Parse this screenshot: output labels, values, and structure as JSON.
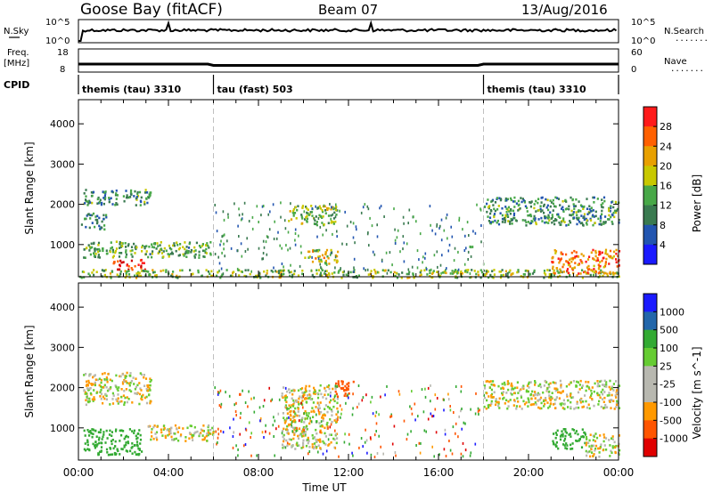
{
  "header": {
    "station": "Goose Bay (fitACF)",
    "beam": "Beam 07",
    "date": "13/Aug/2016"
  },
  "strip_labels": {
    "nsky": "N.Sky",
    "freq_line1": "Freq.",
    "freq_line2": "[MHz]",
    "cpid": "CPID",
    "nsearch": "N.Search",
    "nave": "Nave",
    "nsky_top": "10^5",
    "nsky_bottom": "10^0",
    "nsearch_top": "10^5",
    "nsearch_bottom": "10^0",
    "freq_top": "18",
    "freq_bottom": "8",
    "nave_top": "60",
    "nave_bottom": "0",
    "dots": "......."
  },
  "cpid_segments": [
    {
      "label": "themis (tau) 3310",
      "start_hour": 0
    },
    {
      "label": "tau (fast) 503",
      "start_hour": 6
    },
    {
      "label": "themis (tau) 3310",
      "start_hour": 18
    }
  ],
  "colors": {
    "power": [
      "#1a1aff",
      "#2255b0",
      "#3a7a50",
      "#48a848",
      "#c8c800",
      "#e8a000",
      "#ff6000",
      "#ff1a1a",
      "#d00000"
    ],
    "velocity": [
      "#e00000",
      "#ff5500",
      "#ff9900",
      "#b8b8b0",
      "#b8b8b0",
      "#66cc33",
      "#33aa33",
      "#2266aa",
      "#1a1aff"
    ],
    "dashed": "#c0c0c0"
  },
  "chart_data": [
    {
      "type": "heatmap",
      "name": "power",
      "ylabel": "Slant Range [km]",
      "yticks": [
        "1000",
        "2000",
        "3000",
        "4000"
      ],
      "ylim": [
        200,
        4600
      ],
      "xlim": [
        0,
        24
      ],
      "colorbar": {
        "label": "Power [dB]",
        "ticks": [
          "4",
          "8",
          "12",
          "16",
          "20",
          "24",
          "28"
        ],
        "range": [
          0,
          32
        ]
      },
      "dashed_lines_hours": [
        6,
        18
      ],
      "regions": [
        {
          "hour_start": 0.2,
          "hour_end": 3.2,
          "range_start": 2000,
          "range_end": 2400,
          "power": 10
        },
        {
          "hour_start": 0.1,
          "hour_end": 1.2,
          "range_start": 1400,
          "range_end": 1800,
          "power": 8
        },
        {
          "hour_start": 0.2,
          "hour_end": 6.0,
          "range_start": 700,
          "range_end": 1100,
          "power": 12
        },
        {
          "hour_start": 1.5,
          "hour_end": 3.0,
          "range_start": 400,
          "range_end": 650,
          "power": 28
        },
        {
          "hour_start": 0.0,
          "hour_end": 24.0,
          "range_start": 200,
          "range_end": 400,
          "power": 14
        },
        {
          "hour_start": 9.3,
          "hour_end": 11.5,
          "range_start": 1500,
          "range_end": 2000,
          "power": 14
        },
        {
          "hour_start": 10.0,
          "hour_end": 11.5,
          "range_start": 550,
          "range_end": 900,
          "power": 18
        },
        {
          "hour_start": 18.0,
          "hour_end": 24.0,
          "range_start": 1500,
          "range_end": 2200,
          "power": 10
        },
        {
          "hour_start": 21.0,
          "hour_end": 24.0,
          "range_start": 300,
          "range_end": 900,
          "power": 22
        }
      ]
    },
    {
      "type": "heatmap",
      "name": "velocity",
      "xlabel": "Time UT",
      "ylabel": "Slant Range [km]",
      "yticks": [
        "1000",
        "2000",
        "3000",
        "4000"
      ],
      "ylim": [
        200,
        4600
      ],
      "xlim": [
        0,
        24
      ],
      "xticks": [
        "00:00",
        "04:00",
        "08:00",
        "12:00",
        "16:00",
        "20:00",
        "00:00"
      ],
      "colorbar": {
        "label": "Velocity [m s^-1]",
        "ticks": [
          "1000",
          "500",
          "100",
          "25",
          "-25",
          "-100",
          "-500",
          "-1000"
        ]
      },
      "dashed_lines_hours": [
        6,
        18
      ],
      "regions": [
        {
          "hour_start": 0.2,
          "hour_end": 3.2,
          "range_start": 1600,
          "range_end": 2400,
          "velocity": 0
        },
        {
          "hour_start": 0.2,
          "hour_end": 2.8,
          "range_start": 350,
          "range_end": 1000,
          "velocity": 200
        },
        {
          "hour_start": 3.0,
          "hour_end": 6.0,
          "range_start": 700,
          "range_end": 1100,
          "velocity": 0
        },
        {
          "hour_start": 9.0,
          "hour_end": 11.5,
          "range_start": 500,
          "range_end": 2100,
          "velocity": 0
        },
        {
          "hour_start": 11.3,
          "hour_end": 12.2,
          "range_start": 1800,
          "range_end": 2200,
          "velocity": -200
        },
        {
          "hour_start": 18.0,
          "hour_end": 24.0,
          "range_start": 1500,
          "range_end": 2200,
          "velocity": 0
        },
        {
          "hour_start": 21.0,
          "hour_end": 22.5,
          "range_start": 500,
          "range_end": 1000,
          "velocity": 200
        },
        {
          "hour_start": 22.5,
          "hour_end": 24.0,
          "range_start": 300,
          "range_end": 900,
          "velocity": 0
        }
      ]
    }
  ]
}
